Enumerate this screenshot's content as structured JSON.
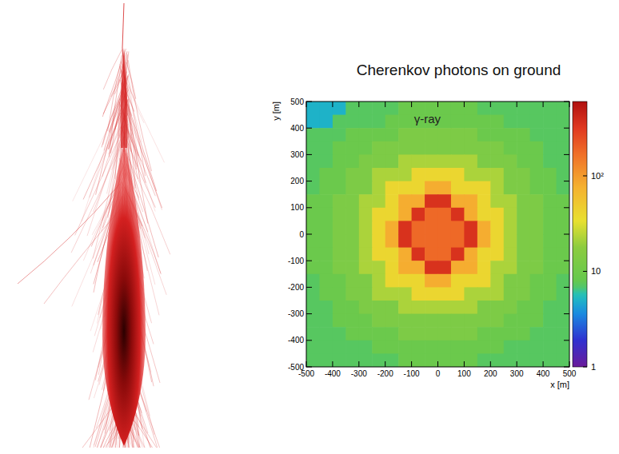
{
  "chart_data": {
    "type": "heatmap",
    "title": "Cherenkov photons on ground",
    "annotation": "γ-ray",
    "x_label": "x [m]",
    "y_label": "y [m]",
    "xlim": [
      -500,
      500
    ],
    "ylim": [
      -500,
      500
    ],
    "xticks": [
      -500,
      -400,
      -300,
      -200,
      -100,
      0,
      100,
      200,
      300,
      400,
      500
    ],
    "yticks": [
      -500,
      -400,
      -300,
      -200,
      -100,
      0,
      100,
      200,
      300,
      400,
      500
    ],
    "x": [
      -475,
      -425,
      -375,
      -325,
      -275,
      -225,
      -175,
      -125,
      -75,
      -25,
      25,
      75,
      125,
      175,
      225,
      275,
      325,
      375,
      425,
      475
    ],
    "y": [
      475,
      425,
      375,
      325,
      275,
      225,
      175,
      125,
      75,
      25,
      -25,
      -75,
      -125,
      -175,
      -225,
      -275,
      -325,
      -375,
      -425,
      -475
    ],
    "cells": [
      [
        5,
        5,
        5,
        7,
        7,
        7,
        7,
        9,
        9,
        9,
        9,
        9,
        9,
        7,
        7,
        7,
        7,
        7,
        7,
        7
      ],
      [
        5,
        5,
        7,
        7,
        7,
        7,
        9,
        9,
        9,
        9,
        9,
        9,
        9,
        9,
        9,
        7,
        7,
        7,
        7,
        7
      ],
      [
        7,
        7,
        7,
        9,
        9,
        9,
        9,
        13,
        13,
        13,
        13,
        13,
        13,
        9,
        9,
        9,
        9,
        7,
        7,
        7
      ],
      [
        7,
        7,
        9,
        9,
        9,
        13,
        13,
        13,
        13,
        13,
        13,
        13,
        13,
        13,
        13,
        9,
        9,
        9,
        7,
        7
      ],
      [
        7,
        7,
        9,
        9,
        13,
        13,
        13,
        22,
        22,
        22,
        22,
        22,
        22,
        13,
        13,
        13,
        9,
        9,
        7,
        7
      ],
      [
        7,
        9,
        9,
        13,
        13,
        22,
        22,
        22,
        40,
        40,
        40,
        40,
        22,
        22,
        22,
        13,
        13,
        9,
        9,
        7
      ],
      [
        7,
        9,
        9,
        13,
        13,
        22,
        40,
        40,
        40,
        80,
        80,
        40,
        40,
        40,
        22,
        13,
        13,
        9,
        9,
        7
      ],
      [
        9,
        9,
        13,
        13,
        22,
        22,
        40,
        80,
        80,
        350,
        350,
        80,
        80,
        40,
        22,
        22,
        13,
        13,
        9,
        9
      ],
      [
        9,
        9,
        13,
        13,
        22,
        40,
        40,
        80,
        350,
        180,
        180,
        350,
        80,
        40,
        40,
        22,
        13,
        13,
        9,
        9
      ],
      [
        9,
        9,
        13,
        13,
        22,
        40,
        80,
        350,
        180,
        180,
        180,
        180,
        350,
        80,
        40,
        22,
        13,
        13,
        9,
        9
      ],
      [
        9,
        9,
        13,
        13,
        22,
        40,
        80,
        350,
        180,
        180,
        180,
        180,
        350,
        80,
        40,
        22,
        13,
        13,
        9,
        9
      ],
      [
        9,
        9,
        13,
        13,
        22,
        40,
        40,
        80,
        350,
        180,
        180,
        350,
        80,
        40,
        40,
        22,
        13,
        13,
        9,
        9
      ],
      [
        9,
        9,
        13,
        13,
        22,
        22,
        40,
        80,
        80,
        350,
        350,
        80,
        80,
        40,
        22,
        22,
        13,
        13,
        9,
        9
      ],
      [
        7,
        9,
        9,
        13,
        13,
        22,
        40,
        40,
        40,
        80,
        80,
        40,
        40,
        40,
        22,
        13,
        13,
        9,
        9,
        7
      ],
      [
        7,
        9,
        9,
        13,
        13,
        22,
        22,
        22,
        40,
        40,
        40,
        40,
        22,
        22,
        22,
        13,
        13,
        9,
        9,
        7
      ],
      [
        7,
        7,
        9,
        9,
        13,
        13,
        13,
        22,
        22,
        22,
        22,
        22,
        22,
        13,
        13,
        13,
        9,
        9,
        7,
        7
      ],
      [
        7,
        7,
        9,
        9,
        9,
        13,
        13,
        13,
        13,
        13,
        13,
        13,
        13,
        13,
        13,
        9,
        9,
        9,
        7,
        7
      ],
      [
        7,
        7,
        7,
        9,
        9,
        9,
        9,
        13,
        13,
        13,
        13,
        13,
        13,
        9,
        9,
        9,
        9,
        7,
        7,
        7
      ],
      [
        7,
        7,
        7,
        7,
        7,
        9,
        9,
        9,
        9,
        9,
        9,
        9,
        9,
        9,
        9,
        7,
        7,
        7,
        7,
        7
      ],
      [
        7,
        7,
        7,
        7,
        7,
        7,
        7,
        9,
        9,
        9,
        9,
        9,
        9,
        7,
        7,
        7,
        7,
        7,
        7,
        7
      ]
    ],
    "colorbar": {
      "range": [
        1,
        600
      ],
      "log": true,
      "ticks": [
        1,
        10,
        {
          "value": 100,
          "label": "10²"
        }
      ]
    }
  }
}
